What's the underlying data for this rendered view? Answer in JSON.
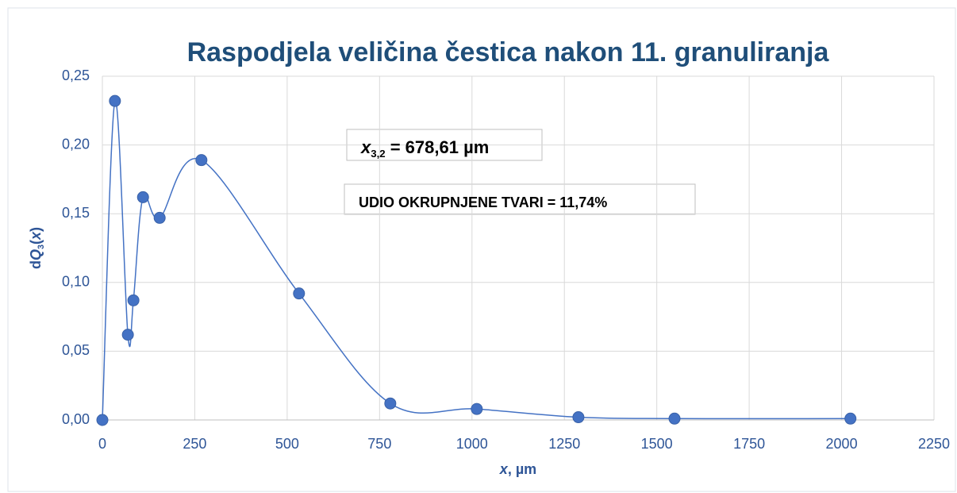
{
  "chart_data": {
    "type": "scatter",
    "title": "Raspodjela veličina čestica nakon 11. granuliranja",
    "x_label": [
      {
        "text": "x",
        "italic": true
      },
      {
        "text": ", µm"
      }
    ],
    "y_label": [
      {
        "text": "d"
      },
      {
        "text": "Q",
        "italic": true
      },
      {
        "text": "3",
        "sub": true
      },
      {
        "text": "("
      },
      {
        "text": "x",
        "italic": true
      },
      {
        "text": ")"
      }
    ],
    "annotations": [
      {
        "parts": [
          {
            "text": "x",
            "italic": true
          },
          {
            "text": "3,2",
            "sub": true
          },
          {
            "text": " = 678,61 µm"
          }
        ]
      },
      {
        "parts": [
          {
            "text": "UDIO OKRUPNJENE TVARI = 11,74%"
          }
        ]
      }
    ],
    "series": [
      {
        "color": "#4472c4",
        "x": [
          0,
          34,
          69,
          84,
          110,
          155,
          268,
          532,
          779,
          1013,
          1288,
          1548,
          2024
        ],
        "values": [
          0,
          0.232,
          0.062,
          0.087,
          0.162,
          0.147,
          0.189,
          0.092,
          0.012,
          0.008,
          0.002,
          0.001,
          0.001
        ]
      }
    ],
    "smooth": true,
    "xlim": [
      0,
      2250
    ],
    "xticks": [
      0,
      250,
      500,
      750,
      1000,
      1250,
      1500,
      1750,
      2000,
      2250
    ],
    "ylim": [
      0,
      0.25
    ],
    "yticks": [
      {
        "value": 0,
        "label": "0,00"
      },
      {
        "value": 0.05,
        "label": "0,05"
      },
      {
        "value": 0.1,
        "label": "0,10"
      },
      {
        "value": 0.15,
        "label": "0,15"
      },
      {
        "value": 0.2,
        "label": "0,20"
      },
      {
        "value": 0.25,
        "label": "0,25"
      }
    ],
    "grid": true
  }
}
